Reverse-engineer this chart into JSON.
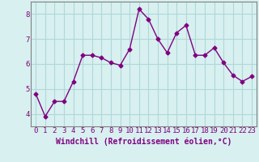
{
  "x": [
    0,
    1,
    2,
    3,
    4,
    5,
    6,
    7,
    8,
    9,
    10,
    11,
    12,
    13,
    14,
    15,
    16,
    17,
    18,
    19,
    20,
    21,
    22,
    23
  ],
  "y": [
    4.8,
    3.9,
    4.5,
    4.5,
    5.3,
    6.35,
    6.35,
    6.25,
    6.05,
    5.95,
    6.6,
    8.2,
    7.8,
    7.0,
    6.45,
    7.25,
    7.55,
    6.35,
    6.35,
    6.65,
    6.05,
    5.55,
    5.3,
    5.5
  ],
  "line_color": "#800080",
  "marker": "D",
  "marker_size": 2.5,
  "line_width": 1.0,
  "bg_color": "#d8f0f0",
  "grid_color": "#b0d8d8",
  "xlabel": "Windchill (Refroidissement éolien,°C)",
  "xlabel_fontsize": 7,
  "tick_label_fontsize": 6.5,
  "xlim": [
    -0.5,
    23.5
  ],
  "ylim": [
    3.5,
    8.5
  ],
  "yticks": [
    4,
    5,
    6,
    7,
    8
  ],
  "xticks": [
    0,
    1,
    2,
    3,
    4,
    5,
    6,
    7,
    8,
    9,
    10,
    11,
    12,
    13,
    14,
    15,
    16,
    17,
    18,
    19,
    20,
    21,
    22,
    23
  ]
}
